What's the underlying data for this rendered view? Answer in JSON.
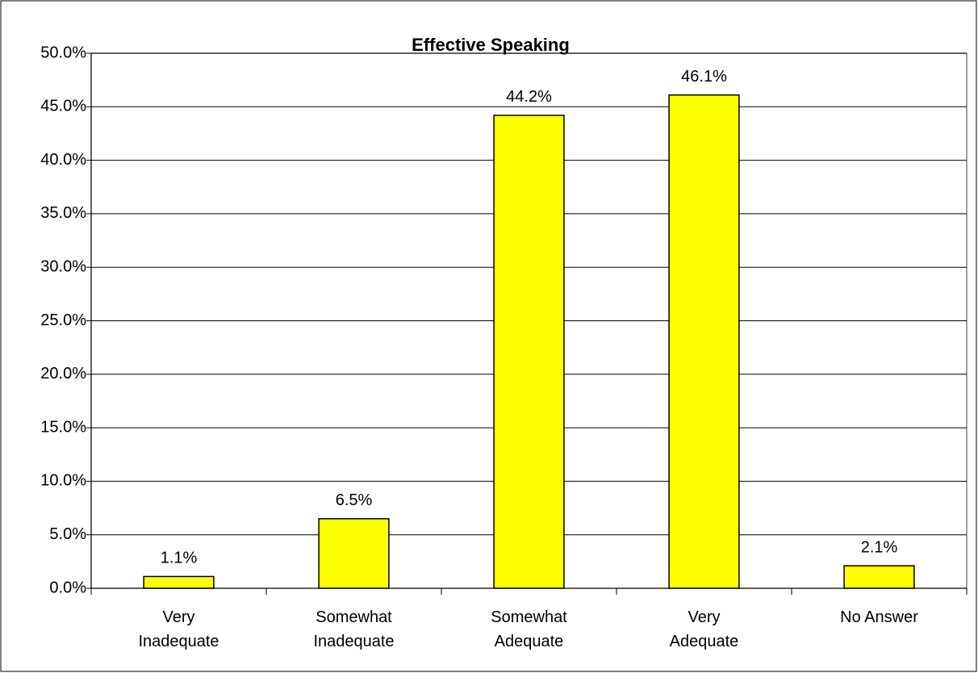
{
  "chart_data": {
    "type": "bar",
    "title": "Effective Speaking",
    "categories": [
      "Very\nInadequate",
      "Somewhat\nInadequate",
      "Somewhat\nAdequate",
      "Very\nAdequate",
      "No Answer"
    ],
    "values": [
      1.1,
      6.5,
      44.2,
      46.1,
      2.1
    ],
    "value_labels": [
      "1.1%",
      "6.5%",
      "44.2%",
      "46.1%",
      "2.1%"
    ],
    "color": "#ffff00",
    "ylim": [
      0,
      50
    ],
    "yticks": [
      {
        "value": 0,
        "label": "0.0%"
      },
      {
        "value": 5,
        "label": "5.0%"
      },
      {
        "value": 10,
        "label": "10.0%"
      },
      {
        "value": 15,
        "label": "15.0%"
      },
      {
        "value": 20,
        "label": "20.0%"
      },
      {
        "value": 25,
        "label": "25.0%"
      },
      {
        "value": 30,
        "label": "30.0%"
      },
      {
        "value": 35,
        "label": "35.0%"
      },
      {
        "value": 40,
        "label": "40.0%"
      },
      {
        "value": 45,
        "label": "45.0%"
      },
      {
        "value": 50,
        "label": "50.0%"
      }
    ],
    "grid": true
  }
}
